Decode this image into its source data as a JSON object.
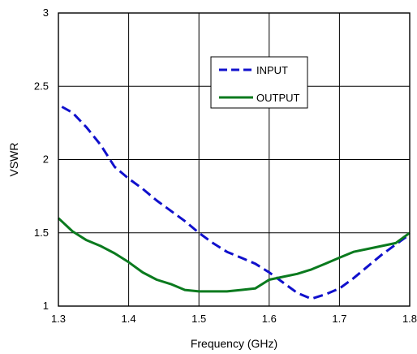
{
  "chart_data": {
    "type": "line",
    "title": "",
    "xlabel": "Frequency (GHz)",
    "ylabel": "VSWR",
    "xlim": [
      1.3,
      1.8
    ],
    "ylim": [
      1,
      3
    ],
    "xticks": [
      1.3,
      1.4,
      1.5,
      1.6,
      1.7,
      1.8
    ],
    "yticks": [
      1,
      1.5,
      2,
      2.5,
      3
    ],
    "xtick_labels": [
      "1.3",
      "1.4",
      "1.5",
      "1.6",
      "1.7",
      "1.8"
    ],
    "ytick_labels": [
      "1",
      "1.5",
      "2",
      "2.5",
      "3"
    ],
    "grid": true,
    "legend_position": "top-center-right",
    "series": [
      {
        "name": "INPUT",
        "color": "#1010cc",
        "style": "dashed",
        "x": [
          1.305,
          1.32,
          1.34,
          1.36,
          1.38,
          1.4,
          1.42,
          1.44,
          1.46,
          1.48,
          1.5,
          1.52,
          1.54,
          1.56,
          1.58,
          1.6,
          1.62,
          1.64,
          1.66,
          1.68,
          1.7,
          1.72,
          1.74,
          1.76,
          1.78,
          1.8
        ],
        "y": [
          2.36,
          2.32,
          2.22,
          2.1,
          1.95,
          1.87,
          1.8,
          1.72,
          1.65,
          1.58,
          1.5,
          1.43,
          1.37,
          1.33,
          1.29,
          1.23,
          1.16,
          1.09,
          1.05,
          1.08,
          1.12,
          1.19,
          1.27,
          1.35,
          1.42,
          1.49
        ]
      },
      {
        "name": "OUTPUT",
        "color": "#0a7a1e",
        "style": "solid",
        "x": [
          1.3,
          1.32,
          1.34,
          1.36,
          1.38,
          1.4,
          1.42,
          1.44,
          1.46,
          1.48,
          1.5,
          1.52,
          1.54,
          1.56,
          1.58,
          1.6,
          1.62,
          1.64,
          1.66,
          1.68,
          1.7,
          1.72,
          1.74,
          1.76,
          1.78,
          1.8
        ],
        "y": [
          1.6,
          1.51,
          1.45,
          1.41,
          1.36,
          1.3,
          1.23,
          1.18,
          1.15,
          1.11,
          1.1,
          1.1,
          1.1,
          1.11,
          1.12,
          1.18,
          1.2,
          1.22,
          1.25,
          1.29,
          1.33,
          1.37,
          1.39,
          1.41,
          1.43,
          1.5
        ]
      }
    ]
  }
}
